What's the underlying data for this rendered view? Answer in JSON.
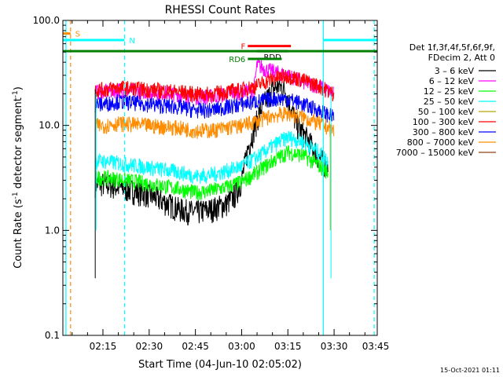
{
  "chart_data": {
    "type": "line",
    "title": "RHESSI Count Rates",
    "xlabel": "Start Time (04-Jun-10 02:05:02)",
    "ylabel_main": "Count Rate (s",
    "ylabel_sup1": "-1",
    "ylabel_mid": " detector segment",
    "ylabel_sup2": "-1",
    "ylabel_end": ")",
    "footer": "15-Oct-2021 01:11",
    "y_scale": "log",
    "ylim": [
      0.1,
      100
    ],
    "xlim_minutes": [
      2.0,
      104.0
    ],
    "x_ticks": [
      {
        "label": "02:15",
        "minute": 15
      },
      {
        "label": "02:30",
        "minute": 30
      },
      {
        "label": "02:45",
        "minute": 45
      },
      {
        "label": "03:00",
        "minute": 60
      },
      {
        "label": "03:15",
        "minute": 75
      },
      {
        "label": "03:30",
        "minute": 90
      },
      {
        "label": "03:45",
        "minute": 105
      }
    ],
    "y_ticks": [
      {
        "label": "100.0",
        "value": 100
      },
      {
        "label": "10.0",
        "value": 10
      },
      {
        "label": "1.0",
        "value": 1
      },
      {
        "label": "0.1",
        "value": 0.1
      }
    ],
    "legend_header": [
      "Det 1f,3f,4f,5f,6f,9f,",
      "FDecim 2, Att 0"
    ],
    "legend_position": "right",
    "legend": [
      {
        "label": "3 – 6 keV",
        "color": "#000000"
      },
      {
        "label": "6 – 12 keV",
        "color": "#ff00ff"
      },
      {
        "label": "12 – 25 keV",
        "color": "#00ff00"
      },
      {
        "label": "25 – 50 keV",
        "color": "#00ffff"
      },
      {
        "label": "50 – 100 keV",
        "color": "#b8a800"
      },
      {
        "label": "100 – 300 keV",
        "color": "#ff0000"
      },
      {
        "label": "300 – 800 keV",
        "color": "#0000ff"
      },
      {
        "label": "800 – 7000 keV",
        "color": "#ff8c00"
      },
      {
        "label": "7000 – 15000 keV",
        "color": "#8b4513"
      }
    ],
    "series": [
      {
        "name": "3 – 6 keV",
        "color": "#000000",
        "x": [
          15,
          20,
          30,
          40,
          45,
          50,
          55,
          58,
          60,
          62,
          66,
          70,
          72,
          74,
          76,
          78,
          82,
          85,
          88
        ],
        "y": [
          2.8,
          2.6,
          2.2,
          1.6,
          1.5,
          1.6,
          1.8,
          2.2,
          3.0,
          6.0,
          14,
          22,
          24,
          22,
          15,
          10,
          7,
          5,
          4
        ]
      },
      {
        "name": "6 – 12 keV",
        "color": "#ff00ff",
        "x": [
          15,
          20,
          30,
          40,
          45,
          50,
          55,
          60,
          64,
          65,
          68,
          70,
          75,
          80,
          85,
          90
        ],
        "y": [
          21,
          22,
          21,
          20,
          19,
          19,
          20,
          21,
          22,
          38,
          34,
          33,
          30,
          26,
          24,
          20
        ]
      },
      {
        "name": "12 – 25 keV",
        "color": "#00ff00",
        "x": [
          15,
          20,
          30,
          40,
          45,
          50,
          55,
          60,
          65,
          70,
          75,
          80,
          85,
          88
        ],
        "y": [
          3.2,
          3.1,
          2.8,
          2.5,
          2.3,
          2.4,
          2.6,
          2.9,
          3.6,
          4.6,
          5.6,
          5.2,
          4.2,
          3.6
        ]
      },
      {
        "name": "25 – 50 keV",
        "color": "#00ffff",
        "x": [
          15,
          20,
          30,
          40,
          45,
          50,
          55,
          60,
          65,
          70,
          75,
          80,
          85,
          88
        ],
        "y": [
          4.6,
          4.4,
          4.0,
          3.6,
          3.3,
          3.4,
          3.7,
          4.1,
          5.0,
          6.4,
          7.8,
          7.0,
          5.6,
          4.6
        ]
      },
      {
        "name": "100 – 300 keV",
        "color": "#ff0000",
        "x": [
          15,
          20,
          30,
          40,
          45,
          50,
          55,
          60,
          65,
          70,
          75,
          80,
          85,
          90
        ],
        "y": [
          22,
          23,
          22,
          21,
          20,
          20,
          21,
          22,
          24,
          28,
          30,
          27,
          24,
          20
        ]
      },
      {
        "name": "300 – 800 keV",
        "color": "#0000ff",
        "x": [
          15,
          20,
          30,
          40,
          45,
          50,
          55,
          60,
          65,
          70,
          75,
          80,
          85,
          90
        ],
        "y": [
          16,
          17,
          16,
          15,
          14,
          14,
          15,
          16,
          17,
          18,
          18,
          16,
          14,
          12
        ]
      },
      {
        "name": "800 – 7000 keV",
        "color": "#ff8c00",
        "x": [
          15,
          20,
          30,
          40,
          45,
          50,
          55,
          60,
          65,
          70,
          75,
          80,
          85,
          90
        ],
        "y": [
          10,
          10.5,
          10,
          9.5,
          9,
          9,
          9.5,
          10,
          11,
          12.5,
          13,
          12,
          10.5,
          9
        ]
      }
    ],
    "spike_series_minute": 12.5,
    "spike_series_min": 0.35,
    "spike_series_max": 22,
    "spike_end_minute": 89,
    "spike_end_min": 0.35,
    "vlines": [
      {
        "minute": 3.0,
        "color": "#00ffff",
        "style": "solid"
      },
      {
        "minute": 4.5,
        "color": "#ff8c00",
        "style": "dashed"
      },
      {
        "minute": 22.0,
        "color": "#00ffff",
        "style": "dashed"
      },
      {
        "minute": 86.5,
        "color": "#00ffff",
        "style": "solid"
      },
      {
        "minute": 103.0,
        "color": "#00ffff",
        "style": "dashed"
      }
    ],
    "flag_bars": [
      {
        "label": "S",
        "color": "#ff8c00",
        "start": 2.0,
        "end": 4.5,
        "y": 75,
        "label_side": "right"
      },
      {
        "label": "N",
        "color": "#00ffff",
        "start": 2.0,
        "end": 22.0,
        "y": 65,
        "label_side": "right"
      },
      {
        "label": "N_right",
        "text": "",
        "color": "#00ffff",
        "start": 86.5,
        "end": 104.0,
        "y": 65,
        "label_side": "none"
      },
      {
        "label": "F",
        "color": "#ff0000",
        "start": 62.0,
        "end": 76.0,
        "y": 57,
        "label_side": "left"
      },
      {
        "label": "RDD",
        "color": "#000000",
        "start": 65.0,
        "end": 75.0,
        "y": 51,
        "label_side": "inside"
      },
      {
        "label": "ECL",
        "text": "",
        "color": "#008000",
        "start": 2.0,
        "end": 104.0,
        "y": 51,
        "label_side": "none"
      },
      {
        "label": "RD6",
        "color": "#008000",
        "start": 62.0,
        "end": 73.0,
        "y": 43,
        "label_side": "left"
      }
    ]
  }
}
